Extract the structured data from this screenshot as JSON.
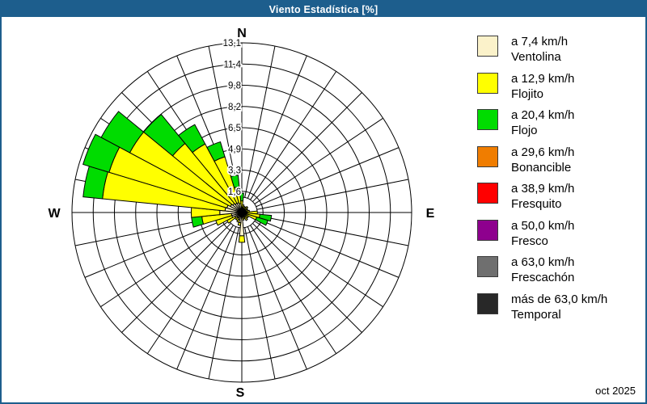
{
  "window": {
    "title": "Viento Estadística [%]",
    "title_bar_color": "#1d5e8d",
    "period": "oct 2025"
  },
  "chart_data": {
    "type": "windrose",
    "title": "Viento Estadística [%]",
    "units": "%",
    "sectors": 32,
    "sector_width_deg": 11.25,
    "rmax": 13.1,
    "rings": 8,
    "grid": true,
    "radial_tick_labels": [
      "1,6",
      "3,3",
      "4,9",
      "6,5",
      "8,2",
      "9,8",
      "11,4",
      "13,1"
    ],
    "compass_labels": {
      "n": "N",
      "e": "E",
      "s": "S",
      "w": "W"
    },
    "legend_position": "right",
    "speed_bins": [
      {
        "speed": "a 7,4 km/h",
        "name": "Ventolina",
        "color": "#fbf2ca"
      },
      {
        "speed": "a 12,9 km/h",
        "name": "Flojito",
        "color": "#ffff00"
      },
      {
        "speed": "a 20,4 km/h",
        "name": "Flojo",
        "color": "#00dc00"
      },
      {
        "speed": "a 29,6 km/h",
        "name": "Bonancible",
        "color": "#f07d00"
      },
      {
        "speed": "a 38,9 km/h",
        "name": "Fresquito",
        "color": "#ff0000"
      },
      {
        "speed": "a 50,0 km/h",
        "name": "Fresco",
        "color": "#8e008e"
      },
      {
        "speed": "a 63,0 km/h",
        "name": "Frescachón",
        "color": "#6f6f6f"
      },
      {
        "speed": "más de 63,0 km/h",
        "name": "Temporal",
        "color": "#282828"
      }
    ],
    "directions_deg": [
      0,
      11.25,
      22.5,
      33.75,
      45,
      56.25,
      67.5,
      78.75,
      90,
      101.25,
      112.5,
      123.75,
      135,
      146.25,
      157.5,
      168.75,
      180,
      191.25,
      202.5,
      213.75,
      225,
      236.25,
      247.5,
      258.75,
      270,
      281.25,
      292.5,
      303.75,
      315,
      326.25,
      337.5,
      348.75
    ],
    "stacks_pct": [
      [
        0.3,
        0.6,
        0.6
      ],
      [
        0.4,
        0.2,
        0.0
      ],
      [
        0.3,
        0.2,
        0.0
      ],
      [
        0.3,
        0.2,
        0.0
      ],
      [
        0.3,
        0.3,
        0.0
      ],
      [
        0.3,
        0.2,
        0.0
      ],
      [
        0.3,
        0.2,
        0.0
      ],
      [
        0.3,
        0.3,
        0.0
      ],
      [
        0.4,
        0.8,
        0.0
      ],
      [
        0.4,
        1.0,
        0.9
      ],
      [
        0.4,
        0.8,
        0.9
      ],
      [
        0.3,
        0.3,
        0.0
      ],
      [
        0.3,
        0.3,
        0.0
      ],
      [
        0.4,
        0.3,
        0.0
      ],
      [
        0.3,
        0.2,
        0.0
      ],
      [
        0.4,
        0.2,
        0.0
      ],
      [
        1.8,
        0.5,
        0.0
      ],
      [
        0.8,
        0.2,
        0.0
      ],
      [
        0.6,
        0.2,
        0.0
      ],
      [
        0.5,
        0.2,
        0.0
      ],
      [
        0.5,
        0.2,
        0.0
      ],
      [
        0.6,
        0.7,
        0.0
      ],
      [
        0.8,
        1.3,
        0.0
      ],
      [
        0.8,
        2.3,
        0.8
      ],
      [
        1.7,
        2.2,
        0.0
      ],
      [
        1.3,
        9.5,
        1.5
      ],
      [
        1.2,
        9.5,
        2.1
      ],
      [
        1.0,
        8.8,
        2.5
      ],
      [
        0.9,
        6.0,
        2.9
      ],
      [
        0.8,
        5.2,
        1.7
      ],
      [
        0.8,
        3.7,
        1.2
      ],
      [
        0.7,
        1.3,
        0.9
      ]
    ]
  }
}
